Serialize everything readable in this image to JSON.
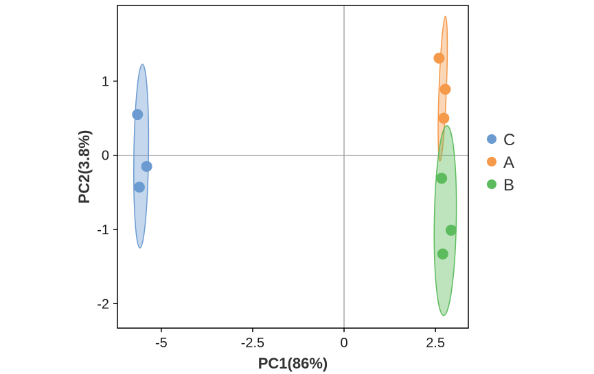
{
  "chart_data": {
    "type": "scatter",
    "xlabel": "PC1(86%)",
    "ylabel": "PC2(3.8%)",
    "xlim": [
      -6.2,
      3.4
    ],
    "ylim": [
      -2.33,
      2.02
    ],
    "xticks": [
      -5,
      -2.5,
      0,
      2.5
    ],
    "xtick_labels": [
      "-5",
      "-2.5",
      "0",
      "2.5"
    ],
    "yticks": [
      -2,
      -1,
      0,
      1
    ],
    "ytick_labels": [
      "-2",
      "-1",
      "0",
      "1"
    ],
    "reference_lines": {
      "x": 0,
      "y": 0
    },
    "grid": false,
    "legend_position": "right",
    "series": [
      {
        "name": "C",
        "color": "#6b9bd1",
        "points": [
          [
            -5.65,
            0.55
          ],
          [
            -5.4,
            -0.15
          ],
          [
            -5.6,
            -0.43
          ]
        ],
        "ellipse": {
          "cx": -5.55,
          "cy": -0.01,
          "angle_deg": -1.6,
          "half_along": 1.24,
          "half_across": 0.2
        }
      },
      {
        "name": "A",
        "color": "#f5994a",
        "points": [
          [
            2.6,
            1.31
          ],
          [
            2.77,
            0.89
          ],
          [
            2.73,
            0.5
          ]
        ],
        "ellipse": {
          "cx": 2.7,
          "cy": 0.9,
          "angle_deg": -4.4,
          "half_along": 0.98,
          "half_across": 0.1
        }
      },
      {
        "name": "B",
        "color": "#5cbb5c",
        "points": [
          [
            2.67,
            -0.31
          ],
          [
            2.93,
            -1.01
          ],
          [
            2.7,
            -1.33
          ]
        ],
        "ellipse": {
          "cx": 2.77,
          "cy": -0.88,
          "angle_deg": -2.0,
          "half_along": 1.28,
          "half_across": 0.3
        }
      }
    ]
  }
}
